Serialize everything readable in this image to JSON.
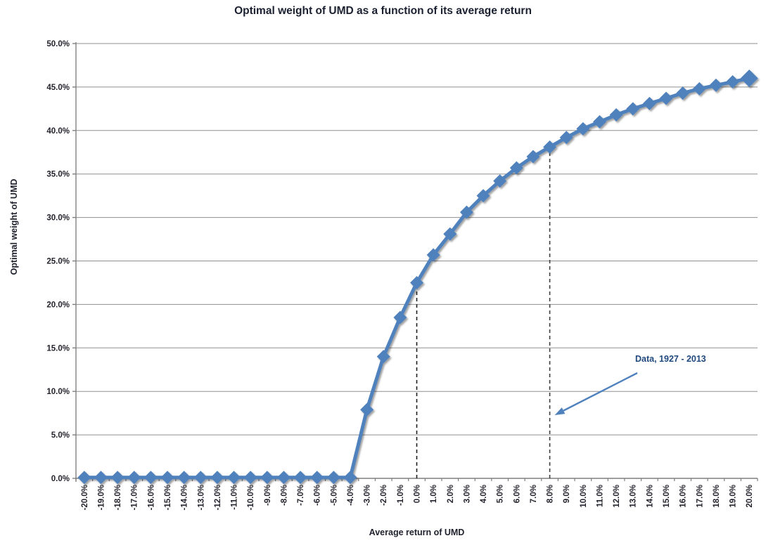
{
  "chart_data": {
    "type": "line",
    "title": "Optimal weight of UMD as a function of its average return",
    "xlabel": "Average return of UMD",
    "ylabel": "Optimal weight of UMD",
    "ylim": [
      0,
      50
    ],
    "grid": "horizontal",
    "legend": "none",
    "x": [
      -20,
      -19,
      -18,
      -17,
      -16,
      -15,
      -14,
      -13,
      -12,
      -11,
      -10,
      -9,
      -8,
      -7,
      -6,
      -5,
      -4,
      -3,
      -2,
      -1,
      0,
      1,
      2,
      3,
      4,
      5,
      6,
      7,
      8,
      9,
      10,
      11,
      12,
      13,
      14,
      15,
      16,
      17,
      18,
      19,
      20
    ],
    "x_ticklabels": [
      "-20.0%",
      "-19.0%",
      "-18.0%",
      "-17.0%",
      "-16.0%",
      "-15.0%",
      "-14.0%",
      "-13.0%",
      "-12.0%",
      "-11.0%",
      "-10.0%",
      "-9.0%",
      "-8.0%",
      "-7.0%",
      "-6.0%",
      "-5.0%",
      "-4.0%",
      "-3.0%",
      "-2.0%",
      "-1.0%",
      "0.0%",
      "1.0%",
      "2.0%",
      "3.0%",
      "4.0%",
      "5.0%",
      "6.0%",
      "7.0%",
      "8.0%",
      "9.0%",
      "10.0%",
      "11.0%",
      "12.0%",
      "13.0%",
      "14.0%",
      "15.0%",
      "16.0%",
      "17.0%",
      "18.0%",
      "19.0%",
      "20.0%"
    ],
    "y_ticks": [
      0,
      5,
      10,
      15,
      20,
      25,
      30,
      35,
      40,
      45,
      50
    ],
    "y_ticklabels": [
      "0.0%",
      "5.0%",
      "10.0%",
      "15.0%",
      "20.0%",
      "25.0%",
      "30.0%",
      "35.0%",
      "40.0%",
      "45.0%",
      "50.0%"
    ],
    "series": [
      {
        "name": "Optimal weight of UMD",
        "values": [
          0.1,
          0.1,
          0.1,
          0.1,
          0.1,
          0.1,
          0.1,
          0.1,
          0.1,
          0.1,
          0.1,
          0.1,
          0.1,
          0.1,
          0.1,
          0.1,
          0.1,
          7.9,
          14.0,
          18.5,
          22.5,
          25.7,
          28.1,
          30.6,
          32.5,
          34.2,
          35.7,
          37.0,
          38.1,
          39.2,
          40.2,
          41.0,
          41.8,
          42.5,
          43.1,
          43.7,
          44.3,
          44.8,
          45.2,
          45.6,
          46.0
        ]
      }
    ],
    "guides": [
      {
        "x_value": 0,
        "y_value": 22.5,
        "style": "dashed",
        "color": "#1f1f1f"
      },
      {
        "x_value": 8,
        "y_value": 38.1,
        "style": "dashed",
        "color": "#3d3d3d"
      }
    ],
    "annotation": {
      "text": "Data, 1927 - 2013"
    },
    "colors": {
      "series": "#4f81bd",
      "grid": "#8f8f8f",
      "axis": "#7f7f7f",
      "title_text": "#1b2130",
      "tick_text": "#23232d",
      "annotation_text": "#1f497d"
    }
  }
}
